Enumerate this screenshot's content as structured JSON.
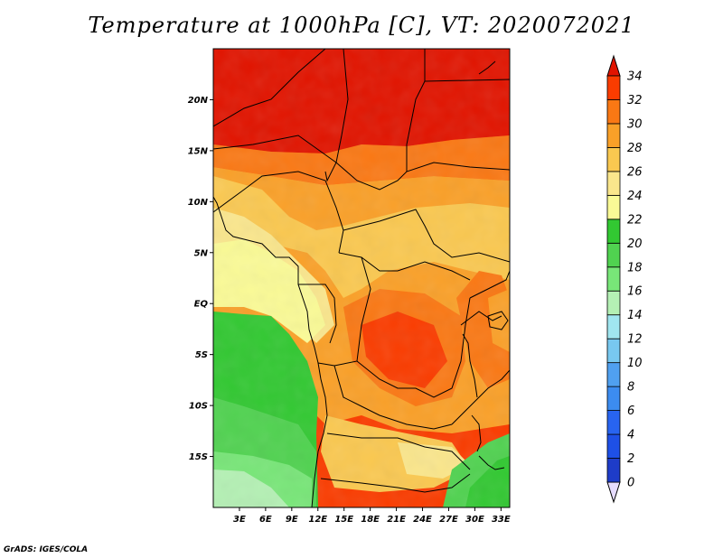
{
  "title": "Temperature at 1000hPa [C], VT: 2020072021",
  "credit": "GrADS: IGES/COLA",
  "map": {
    "lon_range": [
      0,
      34
    ],
    "lat_range": [
      -20,
      25
    ],
    "lat_ticks": [
      {
        "value": 20,
        "label": "20N"
      },
      {
        "value": 15,
        "label": "15N"
      },
      {
        "value": 10,
        "label": "10N"
      },
      {
        "value": 5,
        "label": "5N"
      },
      {
        "value": 0,
        "label": "EQ"
      },
      {
        "value": -5,
        "label": "5S"
      },
      {
        "value": -10,
        "label": "10S"
      },
      {
        "value": -15,
        "label": "15S"
      }
    ],
    "lon_ticks": [
      {
        "value": 3,
        "label": "3E"
      },
      {
        "value": 6,
        "label": "6E"
      },
      {
        "value": 9,
        "label": "9E"
      },
      {
        "value": 12,
        "label": "12E"
      },
      {
        "value": 15,
        "label": "15E"
      },
      {
        "value": 18,
        "label": "18E"
      },
      {
        "value": 21,
        "label": "21E"
      },
      {
        "value": 24,
        "label": "24E"
      },
      {
        "value": 27,
        "label": "27E"
      },
      {
        "value": 30,
        "label": "30E"
      },
      {
        "value": 33,
        "label": "33E"
      }
    ]
  },
  "colorbar": {
    "levels": [
      0,
      2,
      4,
      6,
      8,
      10,
      12,
      14,
      16,
      18,
      20,
      22,
      24,
      26,
      28,
      30,
      32,
      34
    ],
    "labels": [
      "0",
      "2",
      "4",
      "6",
      "8",
      "10",
      "12",
      "14",
      "16",
      "18",
      "20",
      "22",
      "24",
      "26",
      "28",
      "30",
      "32",
      "34"
    ],
    "colors": [
      "#0a0a78",
      "#1e3cc8",
      "#1e50e6",
      "#2864f0",
      "#3c8cf0",
      "#50a0f0",
      "#78c8f0",
      "#a0e6f0",
      "#b4f0b4",
      "#78e678",
      "#50d250",
      "#32c832",
      "#fafa96",
      "#fae68c",
      "#fac850",
      "#faa028",
      "#fa7814",
      "#fa3c00",
      "#e11400"
    ],
    "under_color": "#e6dcff",
    "over_color": "#e11400"
  }
}
